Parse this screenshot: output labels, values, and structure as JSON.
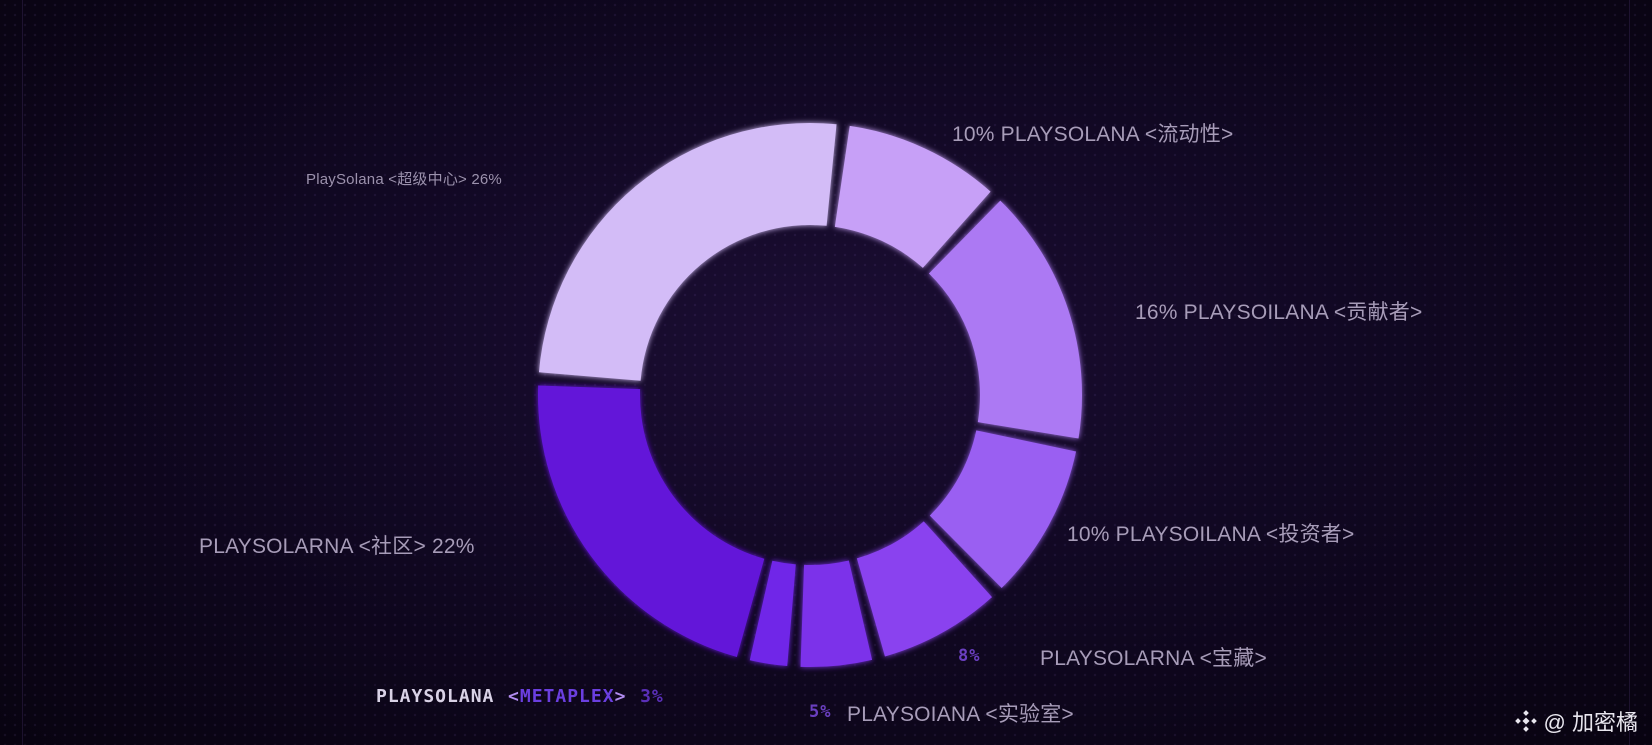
{
  "chart_data": {
    "type": "pie",
    "title": "",
    "slices": [
      {
        "label": "10% PLAYSOLANA <流动性>",
        "value": 10,
        "color": "#c7a0f7"
      },
      {
        "label": "16% PLAYSOILANA <贡献者>",
        "value": 16,
        "color": "#ac79f3"
      },
      {
        "label": "10% PLAYSOILANA <投资者>",
        "value": 10,
        "color": "#9a5ff2"
      },
      {
        "label": "8% PLAYSOLARNA <宝藏>",
        "value": 8,
        "color": "#8a43ef"
      },
      {
        "label": "5% PLAYSOIANA <实验室>",
        "value": 5,
        "color": "#7b30ea"
      },
      {
        "label": "PLAYSOLANA <METAPLEX> 3%",
        "value": 3,
        "color": "#7025e8"
      },
      {
        "label": "PLAYSOLARNA <社区> 22%",
        "value": 22,
        "color": "#6415d9"
      },
      {
        "label": "PlaySolana <超级中心> 26%",
        "value": 26,
        "color": "#d3bcf7"
      }
    ]
  },
  "labels": {
    "liquidity": "10% PLAYSOLANA <流动性>",
    "contributors": "16% PLAYSOILANA <贡献者>",
    "investors": "10% PLAYSOILANA <投资者>",
    "treasury_pct": "8%",
    "treasury_name": "PLAYSOLARNA <宝藏>",
    "labs_pct": "5%",
    "labs_name": "PLAYSOIANA <实验室>",
    "metaplex_name": "PLAYSOLANA",
    "metaplex_open": "<",
    "metaplex_tag": "METAPLEX",
    "metaplex_close": ">",
    "metaplex_pct": "3%",
    "community": "PLAYSOLARNA <社区> 22%",
    "superhub": "PlaySolana <超级中心> 26%"
  },
  "watermark": {
    "text": "@ 加密橘",
    "icon": "binance-diamond-icon"
  }
}
